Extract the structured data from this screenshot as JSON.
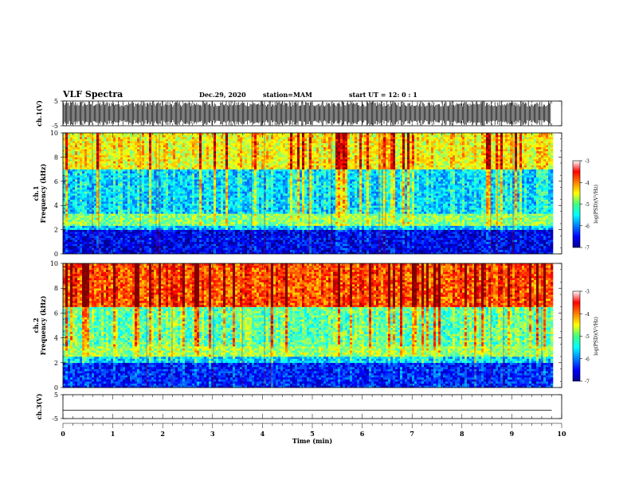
{
  "header": {
    "title": "VLF Spectra",
    "date": "Dec.29, 2020",
    "station": "station=MAM",
    "start": "start  UT =   12: 0  : 1"
  },
  "chart_data": [
    {
      "type": "line",
      "panel": "ch.1 waveform",
      "ylabel": "ch.1(V)",
      "ylim": [
        -5,
        5
      ],
      "ytick_labels": [
        "5",
        "-5"
      ],
      "xlim": [
        0,
        10
      ],
      "description_series": [
        {
          "name": "ch.1",
          "amplitude_range": [
            -5,
            5
          ]
        }
      ]
    },
    {
      "type": "heatmap",
      "panel": "ch.1 spectrogram",
      "ylabel": "ch.1\nFrequency (kHz)",
      "ylim": [
        0,
        10
      ],
      "ytick_labels": [
        "0",
        "2",
        "4",
        "6",
        "8",
        "10"
      ],
      "xlim": [
        0,
        9.8
      ],
      "colorbar": {
        "label": "log(PSD)(V²/Hz)",
        "range": [
          -7,
          -3
        ],
        "ticks": [
          "-3",
          "-4",
          "-5",
          "-6",
          "-7"
        ]
      },
      "bands": [
        {
          "freq_khz": [
            0,
            2
          ],
          "level": -6.6
        },
        {
          "freq_khz": [
            2,
            2.4
          ],
          "level": -5.8
        },
        {
          "freq_khz": [
            2.4,
            3.3
          ],
          "level": -5.0
        },
        {
          "freq_khz": [
            3.3,
            7
          ],
          "level": -5.7
        },
        {
          "freq_khz": [
            7,
            10
          ],
          "level": -4.6
        }
      ]
    },
    {
      "type": "heatmap",
      "panel": "ch.2 spectrogram",
      "ylabel": "ch.2\nFrequency (kHz)",
      "ylim": [
        0,
        10
      ],
      "ytick_labels": [
        "0",
        "2",
        "4",
        "6",
        "8",
        "10"
      ],
      "xlim": [
        0,
        9.8
      ],
      "colorbar": {
        "label": "log(PSD)(V²/Hz)",
        "range": [
          -7,
          -3
        ],
        "ticks": [
          "-3",
          "-4",
          "-5",
          "-6",
          "-7"
        ]
      },
      "bands": [
        {
          "freq_khz": [
            0,
            2
          ],
          "level": -6.4
        },
        {
          "freq_khz": [
            2,
            2.5
          ],
          "level": -5.7
        },
        {
          "freq_khz": [
            2.5,
            3.3
          ],
          "level": -4.9
        },
        {
          "freq_khz": [
            3.3,
            6.5
          ],
          "level": -5.2
        },
        {
          "freq_khz": [
            6.5,
            10
          ],
          "level": -3.9
        }
      ]
    },
    {
      "type": "line",
      "panel": "ch.3 waveform",
      "ylabel": "ch.3(V)",
      "ylim": [
        -5,
        5
      ],
      "ytick_labels": [
        "5",
        "-5"
      ],
      "xlim": [
        0,
        10
      ],
      "series": [
        {
          "x": [
            0,
            9.8
          ],
          "y": [
            -1.5,
            -1.5
          ]
        }
      ],
      "xlabel": "Time (min)",
      "xtick_labels": [
        "0",
        "1",
        "2",
        "3",
        "4",
        "5",
        "6",
        "7",
        "8",
        "9",
        "10"
      ]
    }
  ]
}
